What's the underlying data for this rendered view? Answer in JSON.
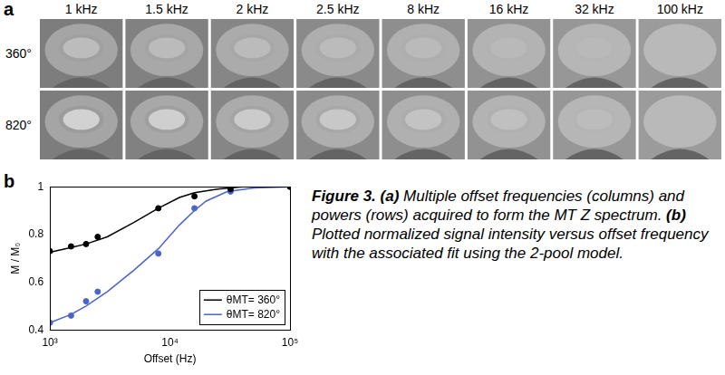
{
  "panel_labels": [
    "a",
    "b"
  ],
  "panel_a": {
    "columns": [
      "1 kHz",
      "1.5 kHz",
      "2 kHz",
      "2.5 kHz",
      "8 kHz",
      "16 kHz",
      "32 kHz",
      "100 kHz"
    ],
    "rows": [
      "360°",
      "820°"
    ]
  },
  "chart_data": {
    "type": "scatter",
    "x_label": "Offset (Hz)",
    "y_label": "M / M₀",
    "log": "x",
    "grid": false,
    "legend": "lower right",
    "xlim": [
      1000,
      100000
    ],
    "xticks": [
      {
        "value": 1000,
        "label": "10³"
      },
      {
        "value": 10000,
        "label": "10⁴"
      },
      {
        "value": 100000,
        "label": "10⁵"
      }
    ],
    "ylim": [
      0.4,
      1
    ],
    "yticks": [
      0.4,
      0.6,
      0.8,
      1
    ],
    "series": [
      {
        "name": "θMT= 360°",
        "type": "line",
        "color": "#000000",
        "line_style": "solid",
        "marker": "none",
        "x": [
          1000,
          1500,
          2000,
          3000,
          5000,
          8000,
          12000,
          16000,
          25000,
          40000,
          100000
        ],
        "values": [
          0.725,
          0.745,
          0.76,
          0.79,
          0.85,
          0.91,
          0.955,
          0.975,
          0.99,
          1.0,
          1.0
        ]
      },
      {
        "name": "θMT= 820°",
        "type": "line",
        "color": "#4a64c8",
        "line_style": "solid",
        "marker": "none",
        "x": [
          1000,
          1500,
          2000,
          3000,
          5000,
          8000,
          12000,
          16000,
          20000,
          30000,
          50000,
          100000
        ],
        "values": [
          0.43,
          0.465,
          0.5,
          0.56,
          0.65,
          0.74,
          0.84,
          0.9,
          0.94,
          0.98,
          0.995,
          1.0
        ]
      },
      {
        "type": "scatter",
        "color": "#000000",
        "marker": "circle",
        "x": [
          1000,
          1500,
          2000,
          2500,
          8000,
          16000,
          32000,
          100000
        ],
        "values": [
          0.73,
          0.75,
          0.76,
          0.79,
          0.91,
          0.96,
          0.99,
          1.0
        ]
      },
      {
        "type": "scatter",
        "color": "#4a64c8",
        "marker": "circle",
        "x": [
          1000,
          1500,
          2000,
          2500,
          8000,
          16000,
          32000,
          100000
        ],
        "values": [
          0.43,
          0.46,
          0.52,
          0.56,
          0.72,
          0.91,
          0.98,
          1.0
        ]
      }
    ]
  },
  "caption": {
    "figure_label": "Figure 3.",
    "a_label": "(a)",
    "a_text": "Multiple offset frequencies (columns) and powers (rows) acquired to form the MT Z spectrum.",
    "b_label": "(b)",
    "b_text": "Plotted normalized signal intensity versus offset frequency with the associated fit using the 2-pool model."
  }
}
